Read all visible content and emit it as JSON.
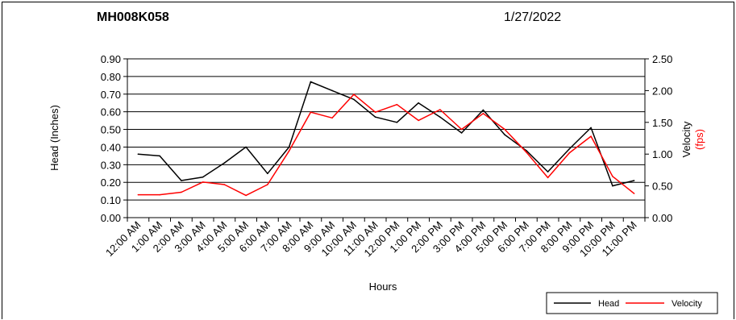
{
  "header": {
    "site_id": "MH008K058",
    "date": "1/27/2022"
  },
  "chart_data": {
    "type": "line",
    "title": "MH008K058",
    "xlabel": "Hours",
    "ylabel_left": "Head (Inches)",
    "ylabel_right_line1": "Velocity",
    "ylabel_right_line2": "(fps)",
    "categories": [
      "12:00 AM",
      "1:00 AM",
      "2:00 AM",
      "3:00 AM",
      "4:00 AM",
      "5:00 AM",
      "6:00 AM",
      "7:00 AM",
      "8:00 AM",
      "9:00 AM",
      "10:00 AM",
      "11:00 AM",
      "12:00 PM",
      "1:00 PM",
      "2:00 PM",
      "3:00 PM",
      "4:00 PM",
      "5:00 PM",
      "6:00 PM",
      "7:00 PM",
      "8:00 PM",
      "9:00 PM",
      "10:00 PM",
      "11:00 PM"
    ],
    "y_left": {
      "min": 0,
      "max": 0.9,
      "ticks": [
        "0.00",
        "0.10",
        "0.20",
        "0.30",
        "0.40",
        "0.50",
        "0.60",
        "0.70",
        "0.80",
        "0.90"
      ]
    },
    "y_right": {
      "min": 0,
      "max": 2.5,
      "ticks": [
        "0.00",
        "0.50",
        "1.00",
        "1.50",
        "2.00",
        "2.50"
      ]
    },
    "grid": "horizontal",
    "legend_position": "bottom-right",
    "series": [
      {
        "name": "Head",
        "axis": "left",
        "color": "#000000",
        "values": [
          0.36,
          0.35,
          0.21,
          0.23,
          0.31,
          0.4,
          0.25,
          0.4,
          0.77,
          0.72,
          0.67,
          0.57,
          0.54,
          0.65,
          0.57,
          0.48,
          0.61,
          0.47,
          0.38,
          0.26,
          0.39,
          0.51,
          0.18,
          0.21
        ]
      },
      {
        "name": "Velocity",
        "axis": "right",
        "color": "#ff0000",
        "values": [
          0.36,
          0.36,
          0.4,
          0.56,
          0.52,
          0.35,
          0.52,
          1.05,
          1.66,
          1.57,
          1.94,
          1.66,
          1.78,
          1.53,
          1.7,
          1.39,
          1.64,
          1.39,
          1.03,
          0.63,
          1.02,
          1.28,
          0.65,
          0.38
        ]
      }
    ]
  }
}
